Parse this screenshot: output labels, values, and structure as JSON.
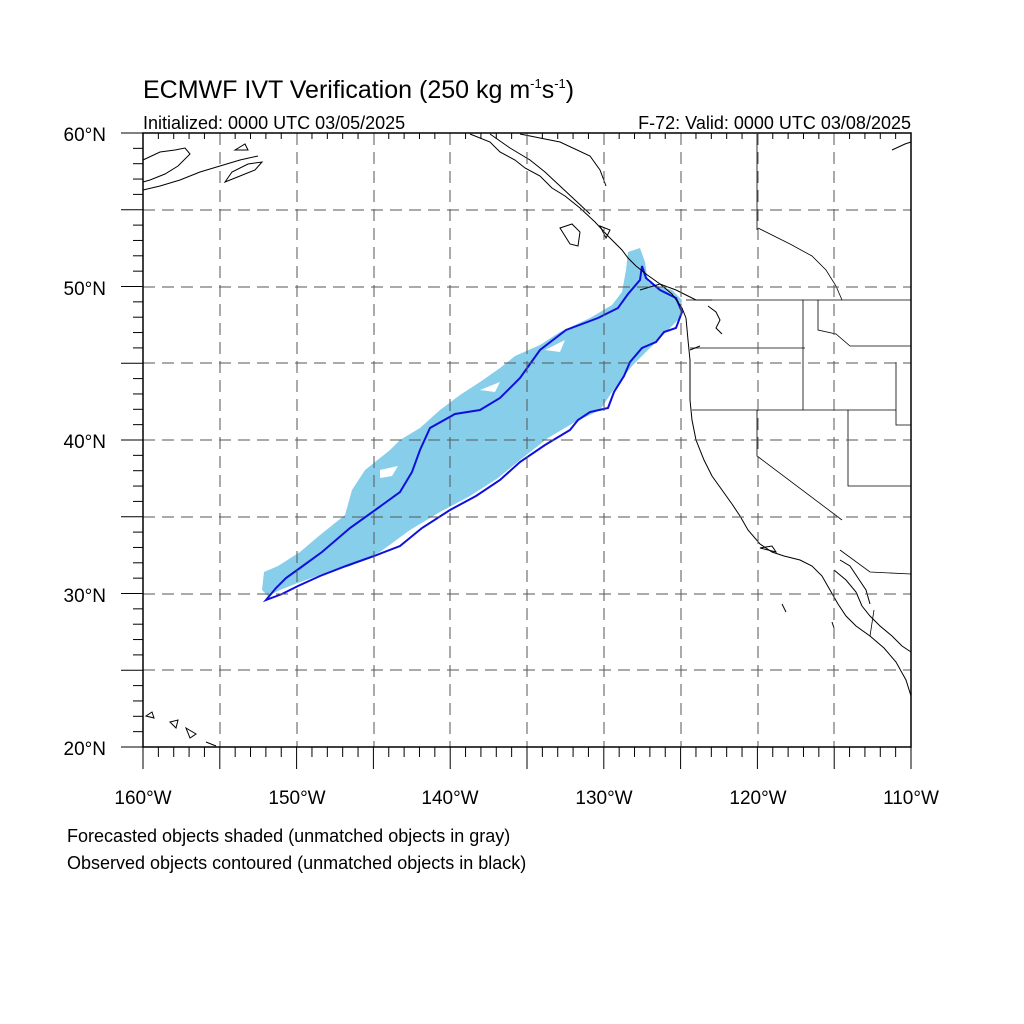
{
  "title": {
    "main": "ECMWF IVT Verification (250 kg m",
    "sup1": "-1",
    "mid": "s",
    "sup2": "-1",
    "close": ")"
  },
  "subtitle": {
    "left": "Initialized: 0000 UTC 03/05/2025",
    "right": "F-72: Valid: 0000 UTC 03/08/2025"
  },
  "lat_labels": [
    "60°N",
    "50°N",
    "40°N",
    "30°N",
    "20°N"
  ],
  "lon_labels": [
    "160°W",
    "150°W",
    "140°W",
    "130°W",
    "120°W",
    "110°W"
  ],
  "footnote": {
    "line1": "Forecasted objects shaded (unmatched objects in gray)",
    "line2": "Observed objects contoured (unmatched objects in black)"
  },
  "colors": {
    "forecast_fill": "#87ceeb",
    "observed_contour": "#1010dd",
    "coastline": "#000000",
    "grid": "#555555"
  },
  "map": {
    "lon_range": [
      -160,
      -110
    ],
    "lat_range": [
      20,
      60
    ],
    "grid_spacing_deg": 5,
    "projection": "cylindrical equidistant"
  }
}
